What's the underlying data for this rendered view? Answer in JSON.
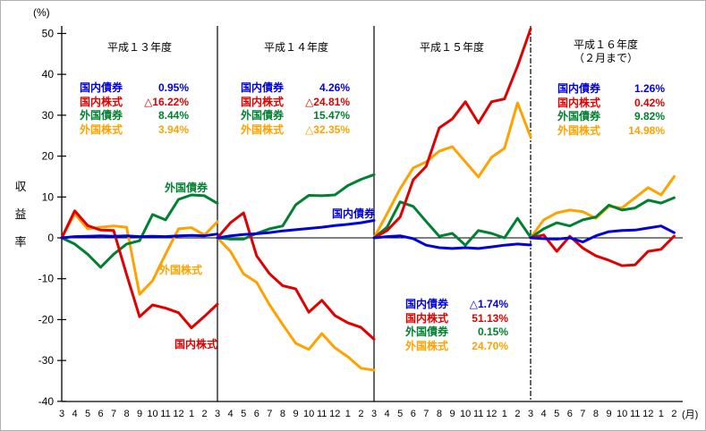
{
  "chart_data": {
    "type": "line",
    "unit_y": "(%)",
    "unit_x": "(月)",
    "y_axis_title": "収益率",
    "ylim": [
      -40,
      50
    ],
    "y_ticks": [
      50,
      40,
      30,
      20,
      10,
      0,
      -10,
      -20,
      -30,
      -40
    ],
    "grid": false,
    "series_labels": {
      "domestic_bond": "国内債券",
      "domestic_stock": "国内株式",
      "foreign_bond": "外国債券",
      "foreign_stock": "外国株式"
    },
    "colors": {
      "domestic_bond": "#0000dd",
      "domestic_stock": "#e00000",
      "foreign_bond": "#008030",
      "foreign_stock": "#ffa200",
      "axis": "#000000"
    },
    "panels": [
      {
        "title": "平成１３年度",
        "subtitle": "",
        "months": [
          "3",
          "4",
          "5",
          "6",
          "7",
          "8",
          "9",
          "10",
          "11",
          "12",
          "1",
          "2",
          "3"
        ],
        "legend": {
          "domestic_bond": "0.95%",
          "domestic_stock": "△16.22%",
          "foreign_bond": "8.44%",
          "foreign_stock": "3.94%"
        },
        "series": {
          "domestic_bond": [
            0,
            0.3,
            0.4,
            0.5,
            0.4,
            0.5,
            0.3,
            0.4,
            0.3,
            0.5,
            0.6,
            0.5,
            0.95
          ],
          "domestic_stock": [
            0,
            6.6,
            3.0,
            1.9,
            1.8,
            -9.0,
            -19.3,
            -16.4,
            -17.2,
            -18.3,
            -22.0,
            -19.2,
            -16.22
          ],
          "foreign_bond": [
            0,
            -1.5,
            -4.0,
            -7.2,
            -4.0,
            -1.5,
            -0.7,
            5.7,
            4.4,
            9.4,
            10.5,
            10.3,
            8.44
          ],
          "foreign_stock": [
            0,
            5.9,
            2.2,
            2.6,
            2.9,
            2.6,
            -13.8,
            -10.5,
            -4.0,
            2.2,
            2.5,
            0.7,
            3.94
          ]
        }
      },
      {
        "title": "平成１４年度",
        "subtitle": "",
        "months": [
          "4",
          "5",
          "6",
          "7",
          "8",
          "9",
          "10",
          "11",
          "12",
          "1",
          "2",
          "3"
        ],
        "legend": {
          "domestic_bond": "4.26%",
          "domestic_stock": "△24.81%",
          "foreign_bond": "15.47%",
          "foreign_stock": "△32.35%"
        },
        "series": {
          "domestic_bond": [
            0,
            0.5,
            0.8,
            1.0,
            1.3,
            1.7,
            2.0,
            2.3,
            2.6,
            3.0,
            3.3,
            3.7,
            4.26
          ],
          "domestic_stock": [
            0,
            3.7,
            6.1,
            -4.4,
            -8.8,
            -11.7,
            -12.5,
            -18.2,
            -15.3,
            -19.0,
            -20.8,
            -21.9,
            -24.81
          ],
          "foreign_bond": [
            0,
            -0.3,
            -0.3,
            1.1,
            2.2,
            2.9,
            8.1,
            10.4,
            10.3,
            10.5,
            12.8,
            14.3,
            15.47
          ],
          "foreign_stock": [
            0,
            -3.3,
            -8.8,
            -10.9,
            -16.4,
            -21.2,
            -25.8,
            -27.3,
            -23.4,
            -26.9,
            -29.1,
            -31.9,
            -32.35
          ]
        }
      },
      {
        "title": "平成１５年度",
        "subtitle": "",
        "months": [
          "4",
          "5",
          "6",
          "7",
          "8",
          "9",
          "10",
          "11",
          "12",
          "1",
          "2",
          "3"
        ],
        "legend": {
          "domestic_bond": "△1.74%",
          "domestic_stock": "51.13%",
          "foreign_bond": "0.15%",
          "foreign_stock": "24.70%"
        },
        "series": {
          "domestic_bond": [
            0,
            0.3,
            0.5,
            -0.2,
            -1.8,
            -2.4,
            -2.6,
            -2.4,
            -2.6,
            -2.2,
            -1.8,
            -1.5,
            -1.74
          ],
          "domestic_stock": [
            0,
            1.8,
            5.1,
            14.2,
            17.5,
            26.9,
            29.1,
            33.3,
            28.1,
            33.3,
            34.0,
            42.0,
            51.13
          ],
          "foreign_bond": [
            0,
            2.6,
            8.8,
            7.7,
            4.0,
            0.4,
            1.1,
            -1.8,
            1.8,
            1.1,
            0.0,
            4.8,
            0.15
          ],
          "foreign_stock": [
            0,
            5.9,
            12.0,
            17.1,
            18.6,
            21.2,
            22.3,
            18.6,
            14.9,
            19.7,
            21.9,
            33.0,
            24.7
          ]
        }
      },
      {
        "title": "平成１６年度",
        "subtitle": "（２月まで）",
        "months": [
          "4",
          "5",
          "6",
          "7",
          "8",
          "9",
          "10",
          "11",
          "12",
          "1",
          "2"
        ],
        "legend": {
          "domestic_bond": "1.26%",
          "domestic_stock": "0.42%",
          "foreign_bond": "9.82%",
          "foreign_stock": "14.98%"
        },
        "series": {
          "domestic_bond": [
            0,
            -0.2,
            -0.3,
            0.0,
            -1.0,
            0.5,
            1.5,
            1.8,
            1.9,
            2.4,
            2.9,
            1.26
          ],
          "domestic_stock": [
            0,
            0.7,
            -3.3,
            0.4,
            -2.5,
            -4.4,
            -5.5,
            -6.8,
            -6.6,
            -3.3,
            -2.8,
            0.42
          ],
          "foreign_bond": [
            0,
            2.2,
            3.7,
            2.9,
            4.4,
            5.1,
            8.0,
            6.8,
            7.3,
            9.2,
            8.5,
            9.82
          ],
          "foreign_stock": [
            0,
            4.4,
            6.1,
            6.8,
            6.4,
            4.8,
            7.7,
            7.3,
            9.8,
            12.3,
            10.5,
            14.98
          ]
        }
      }
    ]
  }
}
